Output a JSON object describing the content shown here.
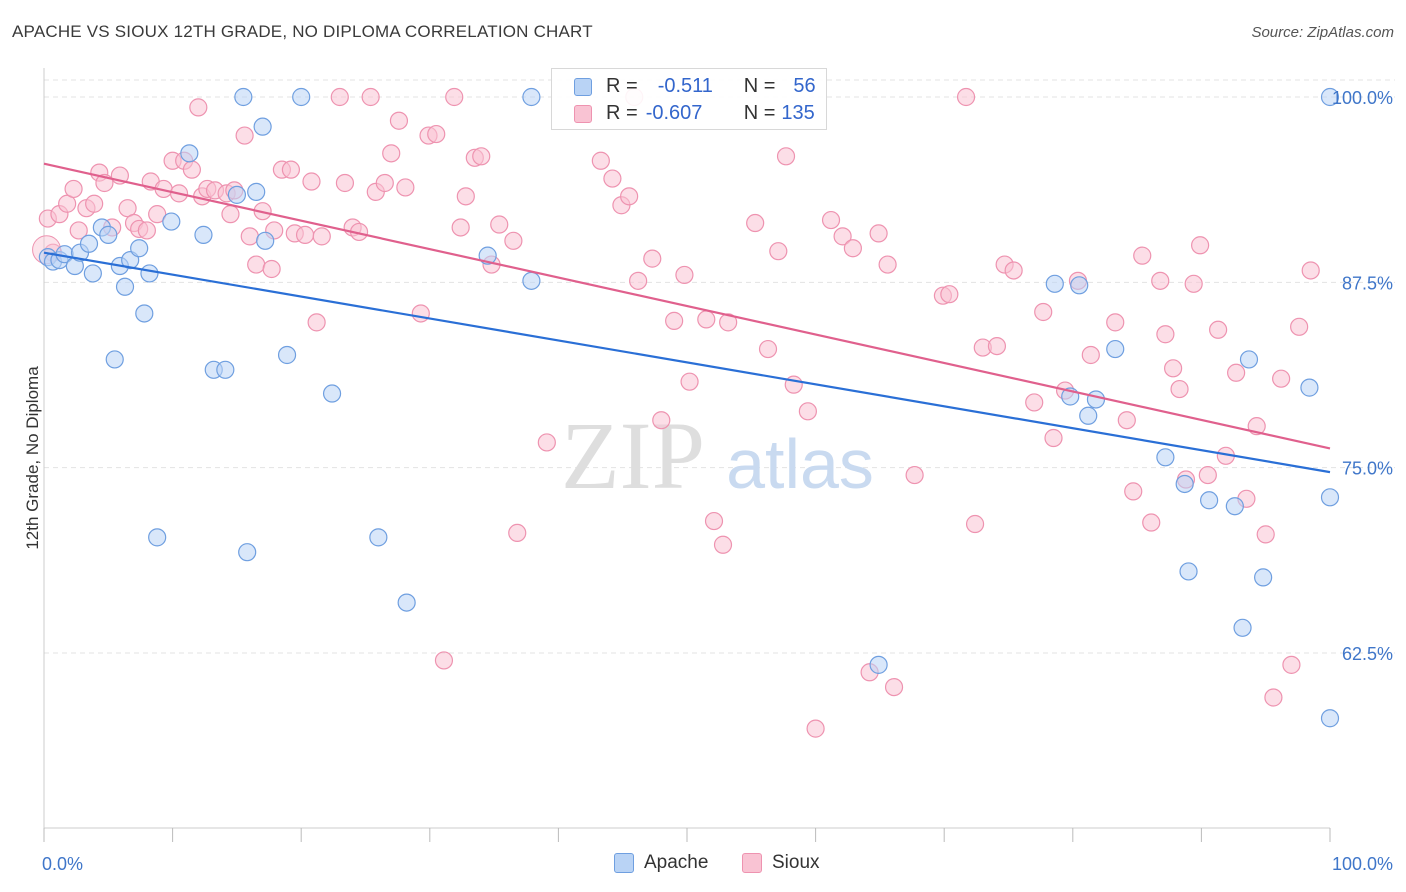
{
  "title": "APACHE VS SIOUX 12TH GRADE, NO DIPLOMA CORRELATION CHART",
  "source": "Source: ZipAtlas.com",
  "watermark": {
    "zip": "ZIP",
    "atlas": "atlas"
  },
  "colors": {
    "apache_fill": "#b9d3f5",
    "apache_stroke": "#6f9fe0",
    "apache_line": "#2a6fd6",
    "sioux_fill": "#f9c3d3",
    "sioux_stroke": "#ee93b0",
    "sioux_line": "#e0608d",
    "axis_label": "#3f76c9"
  },
  "stats": {
    "apache": {
      "r_label": "R =",
      "r_value": "-0.511",
      "n_label": "N =",
      "n_value": "56"
    },
    "sioux": {
      "r_label": "R =",
      "r_value": "-0.607",
      "n_label": "N =",
      "n_value": "135"
    }
  },
  "legend": [
    {
      "name": "Apache"
    },
    {
      "name": "Sioux"
    }
  ],
  "chart_data": {
    "type": "scatter",
    "title": "APACHE VS SIOUX 12TH GRADE, NO DIPLOMA CORRELATION CHART",
    "xlabel": "",
    "ylabel": "12th Grade, No Diploma",
    "xlim": [
      0,
      100
    ],
    "ylim": [
      50.8,
      102
    ],
    "x_tick_labels": [
      "0.0%",
      "100.0%"
    ],
    "y_ticks": [
      62.5,
      75.0,
      87.5,
      100.0
    ],
    "y_tick_labels": [
      "62.5%",
      "75.0%",
      "87.5%",
      "100.0%"
    ],
    "grid": true,
    "legend_position": "bottom-center",
    "series": [
      {
        "name": "Apache",
        "trend": {
          "x": [
            0,
            100
          ],
          "y": [
            89.5,
            74.7
          ]
        },
        "points": [
          [
            0.3,
            89.2
          ],
          [
            0.7,
            88.9
          ],
          [
            1.2,
            89.0
          ],
          [
            1.6,
            89.4
          ],
          [
            2.4,
            88.6
          ],
          [
            2.8,
            89.5
          ],
          [
            3.5,
            90.1
          ],
          [
            3.8,
            88.1
          ],
          [
            4.5,
            91.2
          ],
          [
            5.0,
            90.7
          ],
          [
            5.5,
            82.3
          ],
          [
            5.9,
            88.6
          ],
          [
            6.3,
            87.2
          ],
          [
            6.7,
            89.0
          ],
          [
            7.4,
            89.8
          ],
          [
            7.8,
            85.4
          ],
          [
            8.2,
            88.1
          ],
          [
            8.8,
            70.3
          ],
          [
            9.9,
            91.6
          ],
          [
            11.3,
            96.2
          ],
          [
            12.4,
            90.7
          ],
          [
            13.2,
            81.6
          ],
          [
            14.1,
            81.6
          ],
          [
            15.0,
            93.4
          ],
          [
            15.5,
            100.0
          ],
          [
            15.8,
            69.3
          ],
          [
            16.5,
            93.6
          ],
          [
            17.0,
            98.0
          ],
          [
            17.2,
            90.3
          ],
          [
            18.9,
            82.6
          ],
          [
            20.0,
            100.0
          ],
          [
            22.4,
            80.0
          ],
          [
            26.0,
            70.3
          ],
          [
            28.2,
            65.9
          ],
          [
            34.5,
            89.3
          ],
          [
            37.9,
            87.6
          ],
          [
            37.9,
            100.0
          ],
          [
            64.9,
            61.7
          ],
          [
            78.6,
            87.4
          ],
          [
            79.8,
            79.8
          ],
          [
            80.5,
            87.3
          ],
          [
            81.2,
            78.5
          ],
          [
            81.8,
            79.6
          ],
          [
            83.3,
            83.0
          ],
          [
            87.2,
            75.7
          ],
          [
            88.7,
            73.9
          ],
          [
            89.0,
            68.0
          ],
          [
            90.6,
            72.8
          ],
          [
            92.6,
            72.4
          ],
          [
            93.2,
            64.2
          ],
          [
            93.7,
            82.3
          ],
          [
            94.8,
            67.6
          ],
          [
            98.4,
            80.4
          ],
          [
            100.0,
            100.0
          ],
          [
            100.0,
            58.1
          ],
          [
            100.0,
            73.0
          ]
        ]
      },
      {
        "name": "Sioux",
        "trend": {
          "x": [
            0,
            100
          ],
          "y": [
            95.5,
            76.3
          ]
        },
        "points": [
          [
            0.3,
            91.8
          ],
          [
            0.7,
            89.5
          ],
          [
            1.2,
            92.1
          ],
          [
            1.8,
            92.8
          ],
          [
            2.3,
            93.8
          ],
          [
            2.7,
            91.0
          ],
          [
            3.3,
            92.5
          ],
          [
            3.9,
            92.8
          ],
          [
            4.3,
            94.9
          ],
          [
            4.7,
            94.2
          ],
          [
            5.3,
            91.2
          ],
          [
            5.9,
            94.7
          ],
          [
            6.5,
            92.5
          ],
          [
            7.0,
            91.5
          ],
          [
            7.4,
            91.1
          ],
          [
            8.0,
            91.0
          ],
          [
            8.3,
            94.3
          ],
          [
            8.8,
            92.1
          ],
          [
            9.3,
            93.8
          ],
          [
            10.0,
            95.7
          ],
          [
            10.5,
            93.5
          ],
          [
            10.9,
            95.7
          ],
          [
            11.5,
            95.1
          ],
          [
            12.0,
            99.3
          ],
          [
            12.3,
            93.3
          ],
          [
            12.7,
            93.8
          ],
          [
            13.3,
            93.7
          ],
          [
            14.2,
            93.5
          ],
          [
            14.5,
            92.1
          ],
          [
            14.8,
            93.7
          ],
          [
            15.6,
            97.4
          ],
          [
            16.0,
            90.6
          ],
          [
            16.5,
            88.7
          ],
          [
            17.0,
            92.3
          ],
          [
            17.7,
            88.4
          ],
          [
            17.9,
            91.0
          ],
          [
            18.5,
            95.1
          ],
          [
            19.2,
            95.1
          ],
          [
            19.5,
            90.8
          ],
          [
            20.3,
            90.7
          ],
          [
            20.8,
            94.3
          ],
          [
            21.2,
            84.8
          ],
          [
            21.6,
            90.6
          ],
          [
            23.0,
            100.0
          ],
          [
            23.4,
            94.2
          ],
          [
            24.0,
            91.2
          ],
          [
            24.5,
            90.9
          ],
          [
            25.4,
            100.0
          ],
          [
            25.8,
            93.6
          ],
          [
            26.5,
            94.2
          ],
          [
            27.0,
            96.2
          ],
          [
            27.6,
            98.4
          ],
          [
            28.1,
            93.9
          ],
          [
            29.3,
            85.4
          ],
          [
            29.9,
            97.4
          ],
          [
            30.5,
            97.5
          ],
          [
            31.1,
            62.0
          ],
          [
            31.9,
            100.0
          ],
          [
            32.4,
            91.2
          ],
          [
            32.8,
            93.3
          ],
          [
            33.5,
            95.9
          ],
          [
            34.0,
            96.0
          ],
          [
            34.8,
            88.7
          ],
          [
            35.4,
            91.4
          ],
          [
            36.5,
            90.3
          ],
          [
            36.8,
            70.6
          ],
          [
            39.1,
            76.7
          ],
          [
            43.3,
            95.7
          ],
          [
            44.2,
            94.5
          ],
          [
            44.9,
            92.7
          ],
          [
            45.5,
            93.3
          ],
          [
            45.9,
            100.0
          ],
          [
            46.2,
            87.6
          ],
          [
            47.3,
            89.1
          ],
          [
            48.0,
            78.2
          ],
          [
            49.0,
            84.9
          ],
          [
            49.8,
            88.0
          ],
          [
            50.2,
            80.8
          ],
          [
            51.5,
            85.0
          ],
          [
            52.1,
            71.4
          ],
          [
            52.8,
            69.8
          ],
          [
            53.2,
            84.8
          ],
          [
            55.3,
            91.5
          ],
          [
            56.3,
            83.0
          ],
          [
            57.1,
            89.6
          ],
          [
            57.7,
            96.0
          ],
          [
            58.3,
            80.6
          ],
          [
            59.4,
            78.8
          ],
          [
            60.0,
            57.4
          ],
          [
            61.2,
            91.7
          ],
          [
            62.1,
            90.6
          ],
          [
            62.9,
            89.8
          ],
          [
            64.2,
            61.2
          ],
          [
            64.9,
            90.8
          ],
          [
            65.6,
            88.7
          ],
          [
            66.1,
            60.2
          ],
          [
            67.7,
            74.5
          ],
          [
            69.9,
            86.6
          ],
          [
            70.4,
            86.7
          ],
          [
            71.7,
            100.0
          ],
          [
            72.4,
            71.2
          ],
          [
            73.0,
            83.1
          ],
          [
            74.1,
            83.2
          ],
          [
            74.7,
            88.7
          ],
          [
            75.4,
            88.3
          ],
          [
            77.0,
            79.4
          ],
          [
            77.7,
            85.5
          ],
          [
            78.5,
            77.0
          ],
          [
            79.4,
            80.2
          ],
          [
            80.4,
            87.6
          ],
          [
            81.4,
            82.6
          ],
          [
            83.3,
            84.8
          ],
          [
            84.2,
            78.2
          ],
          [
            84.7,
            73.4
          ],
          [
            85.4,
            89.3
          ],
          [
            86.1,
            71.3
          ],
          [
            86.8,
            87.6
          ],
          [
            87.2,
            84.0
          ],
          [
            87.8,
            81.7
          ],
          [
            88.3,
            80.3
          ],
          [
            88.8,
            74.2
          ],
          [
            89.4,
            87.4
          ],
          [
            89.9,
            90.0
          ],
          [
            90.5,
            74.5
          ],
          [
            91.3,
            84.3
          ],
          [
            91.9,
            75.8
          ],
          [
            92.7,
            81.4
          ],
          [
            93.5,
            72.9
          ],
          [
            94.3,
            77.8
          ],
          [
            95.0,
            70.5
          ],
          [
            95.6,
            59.5
          ],
          [
            96.2,
            81.0
          ],
          [
            97.0,
            61.7
          ],
          [
            97.6,
            84.5
          ],
          [
            98.5,
            88.3
          ]
        ]
      }
    ]
  }
}
